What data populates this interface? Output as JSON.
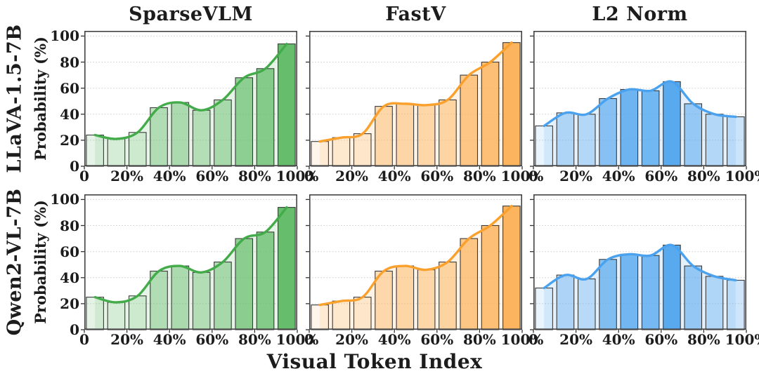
{
  "figure": {
    "xlabel": "Visual Token Index",
    "ylabel": "Probability (%)",
    "row_labels": [
      "LLaVA-1.5-7B",
      "Qwen2-VL-7B"
    ],
    "column_titles": [
      "SparseVLM",
      "FastV",
      "L2 Norm"
    ],
    "y_tick_labels": [
      "0",
      "20",
      "40",
      "60",
      "80",
      "100"
    ],
    "y_tick_values": [
      0,
      20,
      40,
      60,
      80,
      100
    ],
    "x_tick_labels": [
      "0",
      "20%",
      "40%",
      "60%",
      "80%",
      "100%"
    ],
    "colors": {
      "sparsevlm_line": "#43ab4a",
      "sparsevlm_bar": "#66bd6b",
      "fastv_line": "#f9a02d",
      "fastv_bar": "#fcb45e",
      "l2norm_line": "#4aa2ef",
      "l2norm_bar": "#58a9ee",
      "bar_edge": "#3a3a3a",
      "grid": "#cccccc",
      "spine": "#444444",
      "text": "#1c1c1c"
    }
  },
  "chart_data": [
    {
      "type": "bar",
      "title": "SparseVLM",
      "row": "LLaVA-1.5-7B",
      "row_index": 0,
      "col_index": 0,
      "categories": [
        "0-10%",
        "10-20%",
        "20-30%",
        "30-40%",
        "40-50%",
        "50-60%",
        "60-70%",
        "70-80%",
        "80-90%",
        "90-100%"
      ],
      "values": [
        24,
        21,
        26,
        45,
        49,
        43,
        51,
        68,
        75,
        94
      ],
      "xlabel": "Visual Token Index",
      "ylabel": "Probability (%)",
      "ylim": [
        0,
        100
      ],
      "x_ticks": [
        "0",
        "20%",
        "40%",
        "60%",
        "80%",
        "100%"
      ],
      "grid": "dotted horizontal",
      "overlay": "smoothed trend line through bar tops",
      "bar_color": "#66bd6b",
      "line_color": "#43ab4a"
    },
    {
      "type": "bar",
      "title": "FastV",
      "row": "LLaVA-1.5-7B",
      "row_index": 0,
      "col_index": 1,
      "categories": [
        "0-10%",
        "10-20%",
        "20-30%",
        "30-40%",
        "40-50%",
        "50-60%",
        "60-70%",
        "70-80%",
        "80-90%",
        "90-100%"
      ],
      "values": [
        19,
        22,
        25,
        46,
        48,
        47,
        51,
        70,
        80,
        95
      ],
      "xlabel": "Visual Token Index",
      "ylabel": "Probability (%)",
      "ylim": [
        0,
        100
      ],
      "x_ticks": [
        "0",
        "20%",
        "40%",
        "60%",
        "80%",
        "100%"
      ],
      "grid": "dotted horizontal",
      "overlay": "smoothed trend line through bar tops",
      "bar_color": "#fcb45e",
      "line_color": "#f9a02d"
    },
    {
      "type": "bar",
      "title": "L2 Norm",
      "row": "LLaVA-1.5-7B",
      "row_index": 0,
      "col_index": 2,
      "categories": [
        "0-10%",
        "10-20%",
        "20-30%",
        "30-40%",
        "40-50%",
        "50-60%",
        "60-70%",
        "70-80%",
        "80-90%",
        "90-100%"
      ],
      "values": [
        31,
        41,
        40,
        52,
        59,
        58,
        65,
        48,
        40,
        38
      ],
      "xlabel": "Visual Token Index",
      "ylabel": "Probability (%)",
      "ylim": [
        0,
        100
      ],
      "x_ticks": [
        "0",
        "20%",
        "40%",
        "60%",
        "80%",
        "100%"
      ],
      "grid": "dotted horizontal",
      "overlay": "smoothed trend line through bar tops",
      "bar_color": "#58a9ee",
      "line_color": "#4aa2ef"
    },
    {
      "type": "bar",
      "title": "SparseVLM",
      "row": "Qwen2-VL-7B",
      "row_index": 1,
      "col_index": 0,
      "categories": [
        "0-10%",
        "10-20%",
        "20-30%",
        "30-40%",
        "40-50%",
        "50-60%",
        "60-70%",
        "70-80%",
        "80-90%",
        "90-100%"
      ],
      "values": [
        25,
        21,
        26,
        45,
        49,
        44,
        52,
        70,
        75,
        94
      ],
      "xlabel": "Visual Token Index",
      "ylabel": "Probability (%)",
      "ylim": [
        0,
        100
      ],
      "x_ticks": [
        "0",
        "20%",
        "40%",
        "60%",
        "80%",
        "100%"
      ],
      "grid": "dotted horizontal",
      "overlay": "smoothed trend line through bar tops",
      "bar_color": "#66bd6b",
      "line_color": "#43ab4a"
    },
    {
      "type": "bar",
      "title": "FastV",
      "row": "Qwen2-VL-7B",
      "row_index": 1,
      "col_index": 1,
      "categories": [
        "0-10%",
        "10-20%",
        "20-30%",
        "30-40%",
        "40-50%",
        "50-60%",
        "60-70%",
        "70-80%",
        "80-90%",
        "90-100%"
      ],
      "values": [
        19,
        22,
        25,
        45,
        49,
        46,
        52,
        70,
        80,
        95
      ],
      "xlabel": "Visual Token Index",
      "ylabel": "Probability (%)",
      "ylim": [
        0,
        100
      ],
      "x_ticks": [
        "0",
        "20%",
        "40%",
        "60%",
        "80%",
        "100%"
      ],
      "grid": "dotted horizontal",
      "overlay": "smoothed trend line through bar tops",
      "bar_color": "#fcb45e",
      "line_color": "#f9a02d"
    },
    {
      "type": "bar",
      "title": "L2 Norm",
      "row": "Qwen2-VL-7B",
      "row_index": 1,
      "col_index": 2,
      "categories": [
        "0-10%",
        "10-20%",
        "20-30%",
        "30-40%",
        "40-50%",
        "50-60%",
        "60-70%",
        "70-80%",
        "80-90%",
        "90-100%"
      ],
      "values": [
        32,
        42,
        39,
        54,
        58,
        57,
        65,
        49,
        41,
        38
      ],
      "xlabel": "Visual Token Index",
      "ylabel": "Probability (%)",
      "ylim": [
        0,
        100
      ],
      "x_ticks": [
        "0",
        "20%",
        "40%",
        "60%",
        "80%",
        "100%"
      ],
      "grid": "dotted horizontal",
      "overlay": "smoothed trend line through bar tops",
      "bar_color": "#58a9ee",
      "line_color": "#4aa2ef"
    }
  ]
}
